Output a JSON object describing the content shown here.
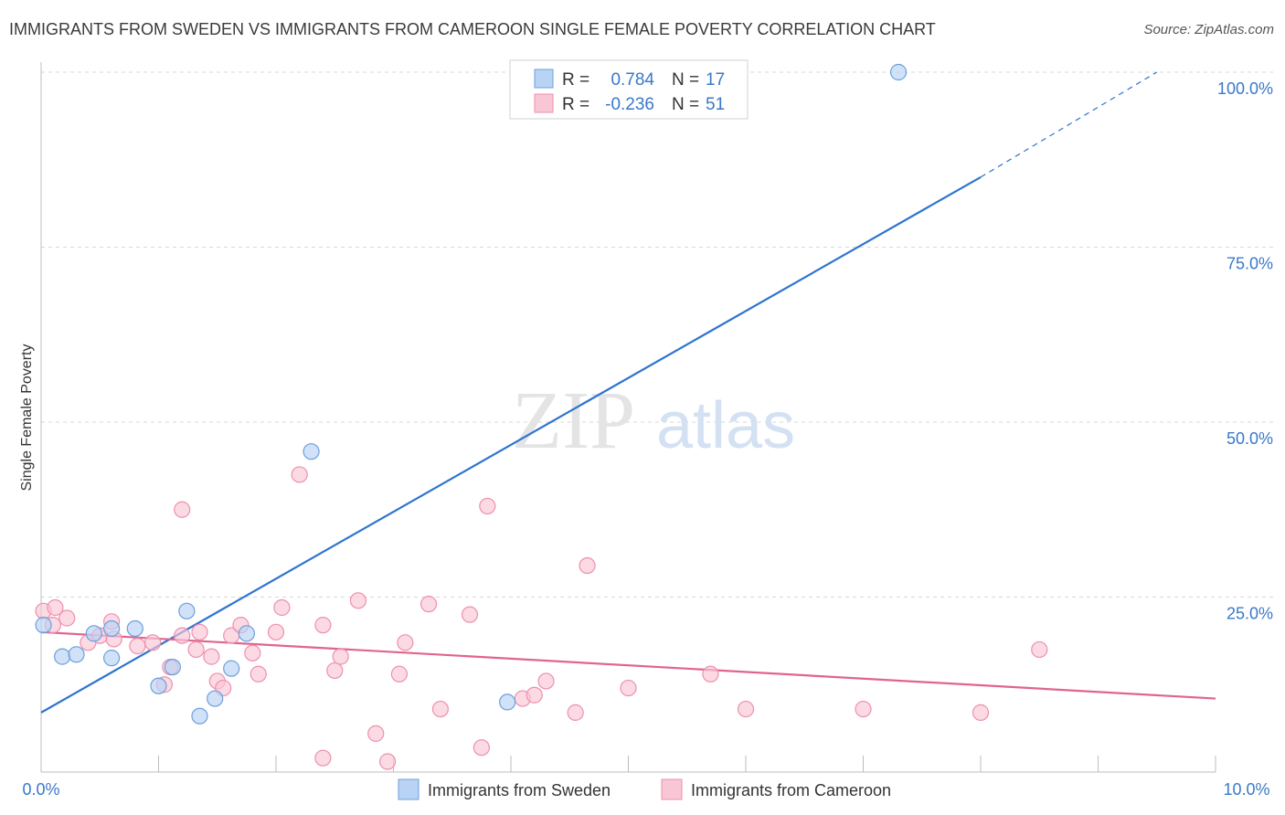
{
  "title": "IMMIGRANTS FROM SWEDEN VS IMMIGRANTS FROM CAMEROON SINGLE FEMALE POVERTY CORRELATION CHART",
  "source": "Source: ZipAtlas.com",
  "watermark": {
    "zip": "ZIP",
    "atlas": "atlas"
  },
  "colors": {
    "sweden_fill": "#b9d3f5",
    "sweden_stroke": "#6c9fdc",
    "sweden_line": "#2f74d0",
    "cameroon_fill": "#f9c6d6",
    "cameroon_stroke": "#ee8fae",
    "cameroon_line": "#e0648f",
    "tick_text": "#3a78c9",
    "grid": "#d8d8d8"
  },
  "legend": {
    "rows": [
      {
        "r_label": "R =",
        "r_value": "0.784",
        "n_label": "N =",
        "n_value": "17"
      },
      {
        "r_label": "R =",
        "r_value": "-0.236",
        "n_label": "N =",
        "n_value": "51"
      }
    ]
  },
  "chart_data": {
    "type": "scatter",
    "title": "IMMIGRANTS FROM SWEDEN VS IMMIGRANTS FROM CAMEROON SINGLE FEMALE POVERTY CORRELATION CHART",
    "xlabel": "",
    "ylabel": "Single Female Poverty",
    "xlim": [
      0,
      10
    ],
    "ylim": [
      0,
      100
    ],
    "x_tick_labels": [
      "0.0%",
      "10.0%"
    ],
    "y_ticks": [
      25,
      50,
      75,
      100
    ],
    "y_tick_labels": [
      "25.0%",
      "50.0%",
      "75.0%",
      "100.0%"
    ],
    "grid": true,
    "series": [
      {
        "name": "Immigrants from Sweden",
        "r": 0.784,
        "n": 17,
        "points": [
          [
            0.02,
            21.0
          ],
          [
            0.18,
            16.5
          ],
          [
            0.3,
            16.8
          ],
          [
            0.45,
            19.8
          ],
          [
            0.6,
            16.3
          ],
          [
            0.6,
            20.5
          ],
          [
            0.8,
            20.5
          ],
          [
            1.0,
            12.3
          ],
          [
            1.12,
            15.0
          ],
          [
            1.24,
            23.0
          ],
          [
            1.35,
            8.0
          ],
          [
            1.48,
            10.5
          ],
          [
            1.62,
            14.8
          ],
          [
            1.75,
            19.8
          ],
          [
            2.3,
            45.8
          ],
          [
            3.97,
            10.0
          ],
          [
            7.3,
            100.0
          ]
        ],
        "trend": {
          "x0": 0.0,
          "y0": 8.5,
          "x1": 8.0,
          "y1": 85.0,
          "dash_x1": 9.5,
          "dash_y1": 100.0
        }
      },
      {
        "name": "Immigrants from Cameroon",
        "r": -0.236,
        "n": 51,
        "points": [
          [
            0.02,
            23.0
          ],
          [
            0.12,
            23.5
          ],
          [
            0.22,
            22.0
          ],
          [
            0.4,
            18.5
          ],
          [
            0.5,
            19.5
          ],
          [
            0.6,
            21.5
          ],
          [
            0.62,
            19.0
          ],
          [
            0.82,
            18.0
          ],
          [
            0.95,
            18.5
          ],
          [
            1.1,
            15.0
          ],
          [
            1.2,
            19.5
          ],
          [
            1.05,
            12.5
          ],
          [
            1.2,
            37.5
          ],
          [
            1.32,
            17.5
          ],
          [
            1.35,
            20.0
          ],
          [
            1.45,
            16.5
          ],
          [
            1.5,
            13.0
          ],
          [
            1.55,
            12.0
          ],
          [
            1.62,
            19.5
          ],
          [
            1.7,
            21.0
          ],
          [
            1.8,
            17.0
          ],
          [
            1.85,
            14.0
          ],
          [
            2.0,
            20.0
          ],
          [
            2.05,
            23.5
          ],
          [
            2.2,
            42.5
          ],
          [
            2.4,
            2.0
          ],
          [
            2.4,
            21.0
          ],
          [
            2.5,
            14.5
          ],
          [
            2.55,
            16.5
          ],
          [
            2.7,
            24.5
          ],
          [
            2.85,
            5.5
          ],
          [
            2.95,
            1.5
          ],
          [
            3.05,
            14.0
          ],
          [
            3.1,
            18.5
          ],
          [
            3.3,
            24.0
          ],
          [
            3.4,
            9.0
          ],
          [
            3.65,
            22.5
          ],
          [
            3.75,
            3.5
          ],
          [
            3.8,
            38.0
          ],
          [
            4.1,
            10.5
          ],
          [
            4.2,
            11.0
          ],
          [
            4.3,
            13.0
          ],
          [
            4.65,
            29.5
          ],
          [
            4.55,
            8.5
          ],
          [
            5.0,
            12.0
          ],
          [
            5.7,
            14.0
          ],
          [
            6.0,
            9.0
          ],
          [
            7.0,
            9.0
          ],
          [
            8.0,
            8.5
          ],
          [
            8.5,
            17.5
          ],
          [
            0.1,
            21.0
          ]
        ],
        "trend": {
          "x0": 0.0,
          "y0": 20.0,
          "x1": 10.0,
          "y1": 10.5
        }
      }
    ]
  }
}
